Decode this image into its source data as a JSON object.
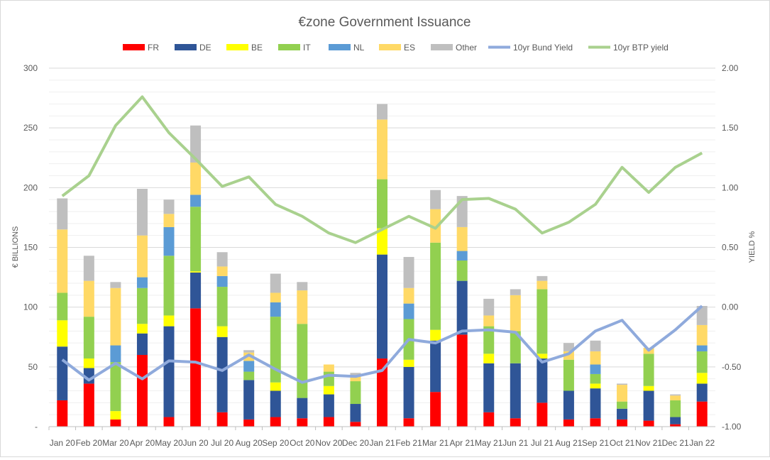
{
  "chart_data": {
    "type": "bar",
    "stacked": true,
    "title": "€zone Government Issuance",
    "ylabel": "€ BILLIONS",
    "y2label": "YIELD %",
    "ylim": [
      0,
      300
    ],
    "y2lim": [
      -1.0,
      2.0
    ],
    "yticks": [
      "-",
      "50",
      "100",
      "150",
      "200",
      "250",
      "300"
    ],
    "y2ticks": [
      "-1.00",
      "-0.50",
      "0.00",
      "0.50",
      "1.00",
      "1.50",
      "2.00"
    ],
    "grid": true,
    "legend_position": "top",
    "categories": [
      "Jan 20",
      "Feb 20",
      "Mar 20",
      "Apr 20",
      "May 20",
      "Jun 20",
      "Jul 20",
      "Aug 20",
      "Sep 20",
      "Oct 20",
      "Nov 20",
      "Dec 20",
      "Jan 21",
      "Feb 21",
      "Mar 21",
      "Apr 21",
      "May 21",
      "Jun 21",
      "Jul 21",
      "Aug 21",
      "Sep 21",
      "Oct 21",
      "Nov 21",
      "Dec 21",
      "Jan 22"
    ],
    "series": [
      {
        "name": "FR",
        "color": "#ff0000",
        "values": [
          22,
          36,
          6,
          60,
          8,
          99,
          12,
          6,
          8,
          7,
          8,
          4,
          57,
          7,
          29,
          77,
          12,
          7,
          20,
          6,
          7,
          6,
          5,
          2,
          21
        ]
      },
      {
        "name": "DE",
        "color": "#2f5597",
        "values": [
          45,
          13,
          0,
          18,
          76,
          30,
          63,
          33,
          22,
          17,
          19,
          15,
          87,
          43,
          43,
          45,
          41,
          46,
          37,
          24,
          25,
          9,
          25,
          6,
          15
        ]
      },
      {
        "name": "BE",
        "color": "#ffff00",
        "values": [
          22,
          8,
          7,
          8,
          9,
          1,
          9,
          0,
          7,
          0,
          7,
          0,
          22,
          6,
          9,
          0,
          8,
          0,
          4,
          0,
          4,
          0,
          4,
          0,
          9
        ]
      },
      {
        "name": "IT",
        "color": "#92d050",
        "values": [
          23,
          35,
          41,
          30,
          50,
          54,
          33,
          7,
          55,
          62,
          12,
          19,
          41,
          34,
          73,
          17,
          23,
          27,
          54,
          26,
          8,
          6,
          27,
          14,
          18
        ]
      },
      {
        "name": "NL",
        "color": "#5b9bd5",
        "values": [
          0,
          0,
          14,
          9,
          24,
          10,
          9,
          9,
          12,
          0,
          0,
          0,
          0,
          13,
          0,
          8,
          0,
          0,
          0,
          0,
          8,
          0,
          0,
          0,
          5
        ]
      },
      {
        "name": "ES",
        "color": "#ffd966",
        "values": [
          53,
          30,
          48,
          35,
          11,
          27,
          8,
          7,
          8,
          28,
          6,
          5,
          50,
          13,
          28,
          20,
          9,
          30,
          7,
          7,
          11,
          14,
          5,
          4,
          17
        ]
      },
      {
        "name": "Other",
        "color": "#bfbfbf",
        "values": [
          26,
          21,
          5,
          39,
          12,
          31,
          12,
          2,
          16,
          7,
          0,
          2,
          13,
          26,
          16,
          26,
          14,
          5,
          4,
          7,
          9,
          1,
          0,
          1,
          16
        ]
      }
    ],
    "lines": [
      {
        "name": "10yr Bund Yield",
        "color": "#8faadc",
        "axis": "right",
        "values": [
          -0.44,
          -0.61,
          -0.47,
          -0.6,
          -0.45,
          -0.46,
          -0.53,
          -0.4,
          -0.52,
          -0.63,
          -0.57,
          -0.58,
          -0.53,
          -0.27,
          -0.3,
          -0.2,
          -0.19,
          -0.21,
          -0.46,
          -0.39,
          -0.2,
          -0.11,
          -0.36,
          -0.19,
          0.01
        ]
      },
      {
        "name": "10yr BTP yield",
        "color": "#a9d18e",
        "axis": "right",
        "values": [
          0.93,
          1.1,
          1.52,
          1.76,
          1.46,
          1.24,
          1.01,
          1.09,
          0.86,
          0.76,
          0.62,
          0.54,
          0.65,
          0.76,
          0.66,
          0.9,
          0.91,
          0.82,
          0.62,
          0.71,
          0.86,
          1.17,
          0.96,
          1.17,
          1.29
        ]
      }
    ]
  }
}
